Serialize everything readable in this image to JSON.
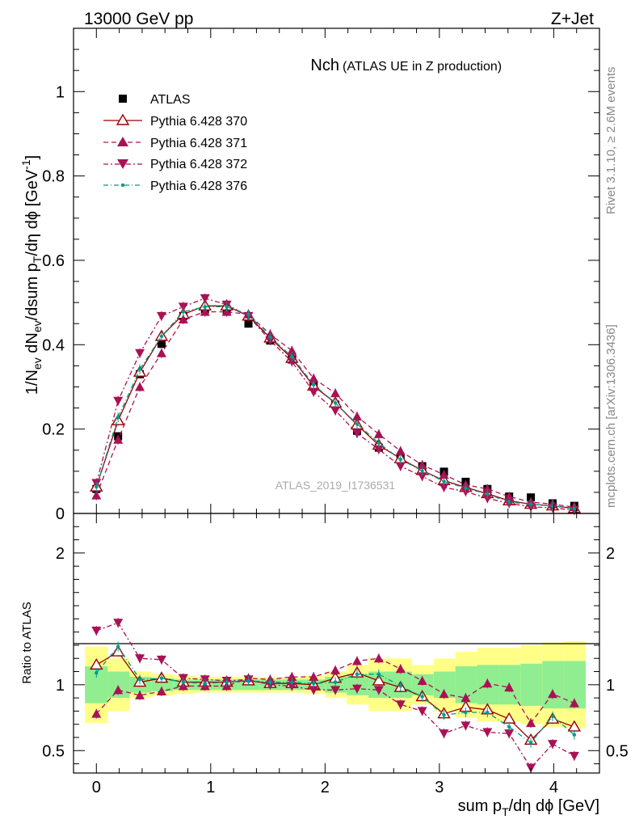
{
  "header": {
    "left": "13000 GeV pp",
    "right": "Z+Jet"
  },
  "side_labels": {
    "rivet": "Rivet 3.1.10, ≥ 2.6M events",
    "mcplots": "mcplots.cern.ch [arXiv:1306.3436]"
  },
  "chart_data": [
    {
      "type": "line",
      "panel": "main",
      "title": "Nch",
      "subtitle": "(ATLAS UE in Z production)",
      "watermark": "ATLAS_2019_I1736531",
      "ylabel": "1/N_ev dN_ev/dsum p_T/dη dϕ [GeV^-1]",
      "xlabel": "sum p_T/dη dϕ [GeV]",
      "xlim": [
        -0.2,
        4.4
      ],
      "ylim": [
        0,
        1.15
      ],
      "x_ticks": [
        "0",
        "1",
        "2",
        "3",
        "4"
      ],
      "y_ticks": [
        "0",
        "0.2",
        "0.4",
        "0.6",
        "0.8",
        "1"
      ],
      "x": [
        0,
        0.19,
        0.38,
        0.57,
        0.76,
        0.95,
        1.14,
        1.33,
        1.52,
        1.71,
        1.9,
        2.09,
        2.28,
        2.47,
        2.66,
        2.85,
        3.04,
        3.23,
        3.42,
        3.61,
        3.8,
        3.99,
        4.18
      ],
      "legend": [
        "ATLAS",
        "Pythia 6.428 370",
        "Pythia 6.428 371",
        "Pythia 6.428 372",
        "Pythia 6.428 376"
      ],
      "series": [
        {
          "name": "ATLAS",
          "color": "#000000",
          "marker": "square",
          "values": [
            0.058,
            0.183,
            0.33,
            0.402,
            0.468,
            0.484,
            0.482,
            0.45,
            0.41,
            0.365,
            0.302,
            0.258,
            0.196,
            0.156,
            0.132,
            0.112,
            0.099,
            0.075,
            0.058,
            0.04,
            0.038,
            0.024,
            0.018
          ]
        },
        {
          "name": "Pythia 6.428 370",
          "color": "#990000",
          "marker": "open-triangle-up",
          "dash": "",
          "values": [
            0.063,
            0.22,
            0.335,
            0.42,
            0.472,
            0.492,
            0.492,
            0.468,
            0.416,
            0.368,
            0.302,
            0.262,
            0.21,
            0.162,
            0.13,
            0.102,
            0.078,
            0.062,
            0.047,
            0.03,
            0.022,
            0.018,
            0.012
          ]
        },
        {
          "name": "Pythia 6.428 371",
          "color": "#aa1155",
          "marker": "triangle-up",
          "dash": "6,4",
          "values": [
            0.043,
            0.175,
            0.3,
            0.38,
            0.46,
            0.478,
            0.478,
            0.472,
            0.425,
            0.386,
            0.32,
            0.285,
            0.23,
            0.188,
            0.148,
            0.115,
            0.092,
            0.068,
            0.058,
            0.04,
            0.027,
            0.022,
            0.015
          ]
        },
        {
          "name": "Pythia 6.428 372",
          "color": "#aa1155",
          "marker": "triangle-down",
          "dash": "6,3,2,3",
          "values": [
            0.072,
            0.267,
            0.38,
            0.468,
            0.49,
            0.51,
            0.495,
            0.468,
            0.41,
            0.36,
            0.288,
            0.244,
            0.19,
            0.152,
            0.112,
            0.088,
            0.062,
            0.052,
            0.036,
            0.024,
            0.016,
            0.013,
            0.008
          ]
        },
        {
          "name": "Pythia 6.428 376",
          "color": "#009988",
          "marker": "dot",
          "dash": "6,3,1,3",
          "values": [
            0.063,
            0.228,
            0.342,
            0.42,
            0.478,
            0.49,
            0.49,
            0.472,
            0.418,
            0.372,
            0.305,
            0.262,
            0.212,
            0.167,
            0.128,
            0.101,
            0.076,
            0.06,
            0.046,
            0.027,
            0.022,
            0.018,
            0.011
          ]
        }
      ]
    },
    {
      "type": "line",
      "panel": "ratio",
      "ylabel": "Ratio to ATLAS",
      "xlim": [
        -0.2,
        4.4
      ],
      "ylim": [
        0.33,
        2.3
      ],
      "y_ticks": [
        "0.5",
        "1",
        "2"
      ],
      "x": [
        0,
        0.19,
        0.38,
        0.57,
        0.76,
        0.95,
        1.14,
        1.33,
        1.52,
        1.71,
        1.9,
        2.09,
        2.28,
        2.47,
        2.66,
        2.85,
        3.04,
        3.23,
        3.42,
        3.61,
        3.8,
        3.99,
        4.18
      ],
      "bands": {
        "bin_edges": [
          -0.1,
          0.1,
          0.29,
          0.48,
          0.67,
          0.86,
          1.05,
          1.24,
          1.43,
          1.62,
          1.81,
          2.0,
          2.19,
          2.38,
          2.57,
          2.76,
          2.95,
          3.14,
          3.33,
          3.52,
          3.71,
          3.9,
          4.09,
          4.28
        ],
        "stat_syst": [
          0.29,
          0.2,
          0.1,
          0.08,
          0.07,
          0.06,
          0.06,
          0.06,
          0.06,
          0.06,
          0.07,
          0.1,
          0.15,
          0.2,
          0.2,
          0.15,
          0.2,
          0.25,
          0.28,
          0.28,
          0.3,
          0.32,
          0.33
        ],
        "stat": [
          0.14,
          0.1,
          0.06,
          0.05,
          0.04,
          0.04,
          0.04,
          0.04,
          0.04,
          0.04,
          0.04,
          0.06,
          0.08,
          0.1,
          0.1,
          0.08,
          0.1,
          0.14,
          0.15,
          0.15,
          0.16,
          0.18,
          0.18
        ],
        "colors": {
          "stat_syst": "#ffff88",
          "stat": "#90ee90"
        }
      },
      "series": [
        {
          "name": "Pythia 6.428 370",
          "color": "#990000",
          "marker": "open-triangle-up",
          "dash": "",
          "values": [
            1.15,
            1.25,
            1.02,
            1.05,
            1.02,
            1.02,
            1.02,
            1.03,
            1.01,
            1.01,
            1.0,
            1.05,
            1.09,
            1.03,
            0.98,
            0.91,
            0.78,
            0.83,
            0.81,
            0.74,
            0.58,
            0.74,
            0.68
          ]
        },
        {
          "name": "Pythia 6.428 371",
          "color": "#aa1155",
          "marker": "triangle-up",
          "dash": "6,4",
          "values": [
            0.78,
            0.96,
            0.92,
            0.95,
            0.99,
            0.99,
            0.99,
            1.05,
            1.04,
            1.06,
            1.06,
            1.11,
            1.18,
            1.2,
            1.12,
            1.03,
            0.93,
            0.9,
            1.01,
            0.98,
            0.71,
            0.93,
            0.86
          ]
        },
        {
          "name": "Pythia 6.428 372",
          "color": "#aa1155",
          "marker": "triangle-down",
          "dash": "6,3,2,3",
          "values": [
            1.41,
            1.47,
            1.2,
            1.19,
            1.05,
            1.04,
            1.03,
            1.04,
            1.0,
            0.99,
            0.96,
            0.96,
            0.97,
            0.96,
            0.85,
            0.8,
            0.63,
            0.69,
            0.64,
            0.63,
            0.37,
            0.55,
            0.46
          ]
        },
        {
          "name": "Pythia 6.428 376",
          "color": "#009988",
          "marker": "dot",
          "dash": "6,3,1,3",
          "values": [
            1.09,
            1.29,
            1.04,
            1.05,
            1.02,
            1.01,
            1.02,
            1.03,
            1.02,
            1.02,
            1.01,
            1.02,
            1.08,
            1.08,
            0.99,
            0.91,
            0.77,
            0.79,
            0.79,
            0.68,
            0.56,
            0.76,
            0.62
          ]
        }
      ]
    }
  ]
}
